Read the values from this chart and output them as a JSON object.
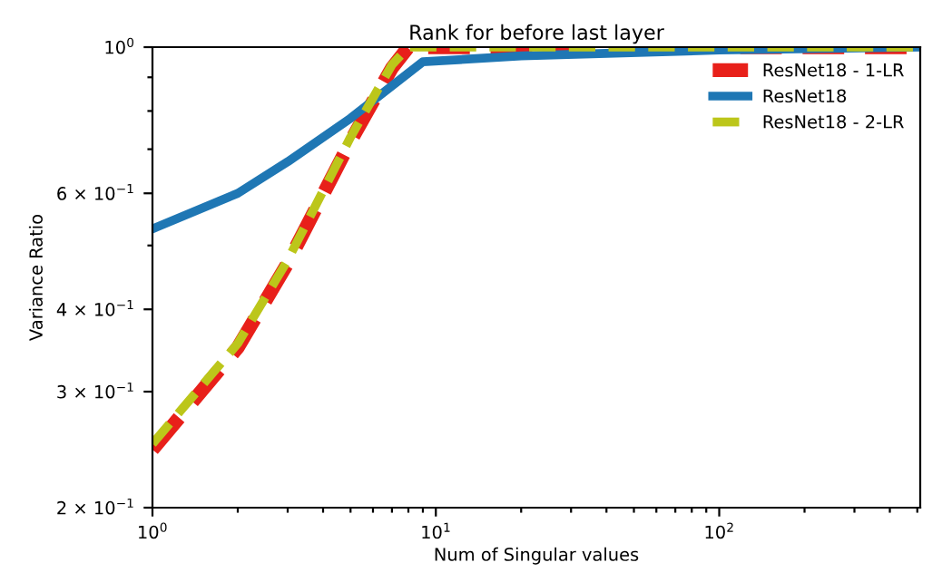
{
  "chart_data": {
    "type": "line",
    "title": "Rank for before last layer",
    "xlabel": "Num of Singular values",
    "ylabel": "Variance Ratio",
    "log": "xy",
    "xlim": [
      1,
      512
    ],
    "ylim": [
      0.2,
      1
    ],
    "xticks": [
      {
        "value": 1,
        "label": "10$^{0}$"
      },
      {
        "value": 2,
        "label": null
      },
      {
        "value": 3,
        "label": null
      },
      {
        "value": 4,
        "label": null
      },
      {
        "value": 5,
        "label": null
      },
      {
        "value": 6,
        "label": null
      },
      {
        "value": 7,
        "label": null
      },
      {
        "value": 8,
        "label": null
      },
      {
        "value": 9,
        "label": null
      },
      {
        "value": 10,
        "label": "10$^{1}$"
      },
      {
        "value": 20,
        "label": null
      },
      {
        "value": 30,
        "label": null
      },
      {
        "value": 40,
        "label": null
      },
      {
        "value": 50,
        "label": null
      },
      {
        "value": 60,
        "label": null
      },
      {
        "value": 70,
        "label": null
      },
      {
        "value": 80,
        "label": null
      },
      {
        "value": 90,
        "label": null
      },
      {
        "value": 100,
        "label": "10$^{2}$"
      },
      {
        "value": 200,
        "label": null
      },
      {
        "value": 300,
        "label": null
      },
      {
        "value": 400,
        "label": null
      },
      {
        "value": 500,
        "label": null
      }
    ],
    "yticks": [
      {
        "value": 0.2,
        "label": "2 × 10$^{−1}$"
      },
      {
        "value": 0.3,
        "label": "3 × 10$^{−1}$"
      },
      {
        "value": 0.4,
        "label": "4 × 10$^{−1}$"
      },
      {
        "value": 0.5,
        "label": null
      },
      {
        "value": 0.6,
        "label": "6 × 10$^{−1}$"
      },
      {
        "value": 0.7,
        "label": null
      },
      {
        "value": 0.8,
        "label": null
      },
      {
        "value": 0.9,
        "label": null
      },
      {
        "value": 1,
        "label": "10$^{0}$"
      }
    ],
    "legend": "top right",
    "grid": false,
    "series": [
      {
        "name": "ResNet18 - 1-LR",
        "color": "#e8201a",
        "line_style": "dashed",
        "x": [
          1,
          2,
          3,
          5,
          7,
          8,
          20,
          100,
          512
        ],
        "values": [
          0.245,
          0.35,
          0.47,
          0.72,
          0.93,
          1.0,
          1.0,
          1.0,
          1.0
        ]
      },
      {
        "name": "ResNet18",
        "color": "#1f77b4",
        "line_style": "solid",
        "x": [
          1,
          2,
          3,
          5,
          9,
          20,
          100,
          512
        ],
        "values": [
          0.53,
          0.6,
          0.67,
          0.78,
          0.95,
          0.97,
          0.99,
          1.0
        ]
      },
      {
        "name": "ResNet18 - 2-LR",
        "color": "#bcc61a",
        "line_style": "dashed",
        "x": [
          1,
          2,
          3,
          5,
          7,
          8,
          20,
          100,
          512
        ],
        "values": [
          0.25,
          0.355,
          0.475,
          0.73,
          0.94,
          1.0,
          1.0,
          1.0,
          1.0
        ]
      }
    ]
  }
}
